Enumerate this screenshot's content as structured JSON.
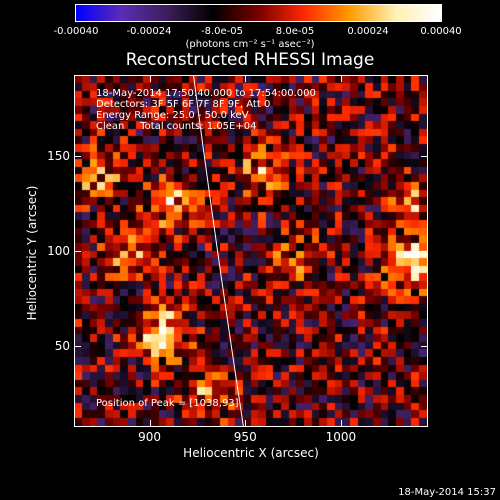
{
  "colorbar": {
    "ticks": [
      "-0.00040",
      "-0.00024",
      "-8.0e-05",
      "8.0e-05",
      "0.00024",
      "0.00040"
    ],
    "tick_values": [
      -0.0004,
      -0.00024,
      -8e-05,
      8e-05,
      0.00024,
      0.0004
    ],
    "range": [
      -0.0004,
      0.0004
    ],
    "units": "(photons cm⁻² s⁻¹ asec⁻²)",
    "colors": [
      "#0000ff",
      "#5a2db4",
      "#3c1e5a",
      "#000000",
      "#7a0000",
      "#ff2800",
      "#ff9b00",
      "#fff0b4",
      "#ffffff"
    ]
  },
  "chart_data": {
    "type": "heatmap",
    "title": "Reconstructed RHESSI Image",
    "xlabel": "Heliocentric X (arcsec)",
    "ylabel": "Heliocentric Y (arcsec)",
    "xlim": [
      861,
      1045
    ],
    "ylim": [
      8,
      192
    ],
    "xticks": [
      900,
      950,
      1000
    ],
    "yticks": [
      50,
      100,
      150
    ],
    "info_lines": [
      "18-May-2014 17:50:40.000 to 17:54:00.000",
      "Detectors: 3F 5F 6F 7F 8F 9F, Att 0",
      "Energy Range: 25.0 - 50.0 keV",
      "Clean     Total counts: 1.05E+04"
    ],
    "peak_text": "Position of Peak = [1038,93]",
    "peak": [
      1038,
      93
    ],
    "hotspots": [
      {
        "x": 907,
        "y": 55,
        "value": 0.0004
      },
      {
        "x": 912,
        "y": 125,
        "value": 0.0003
      },
      {
        "x": 890,
        "y": 100,
        "value": 0.00026
      },
      {
        "x": 875,
        "y": 140,
        "value": 0.00022
      },
      {
        "x": 960,
        "y": 140,
        "value": 0.00026
      },
      {
        "x": 975,
        "y": 95,
        "value": 0.00018
      },
      {
        "x": 1038,
        "y": 93,
        "value": 0.0004
      },
      {
        "x": 1040,
        "y": 125,
        "value": 0.0002
      },
      {
        "x": 930,
        "y": 25,
        "value": 0.00018
      }
    ],
    "limb_x": [
      923,
      949
    ]
  },
  "timestamp": "18-May-2014 15:37"
}
